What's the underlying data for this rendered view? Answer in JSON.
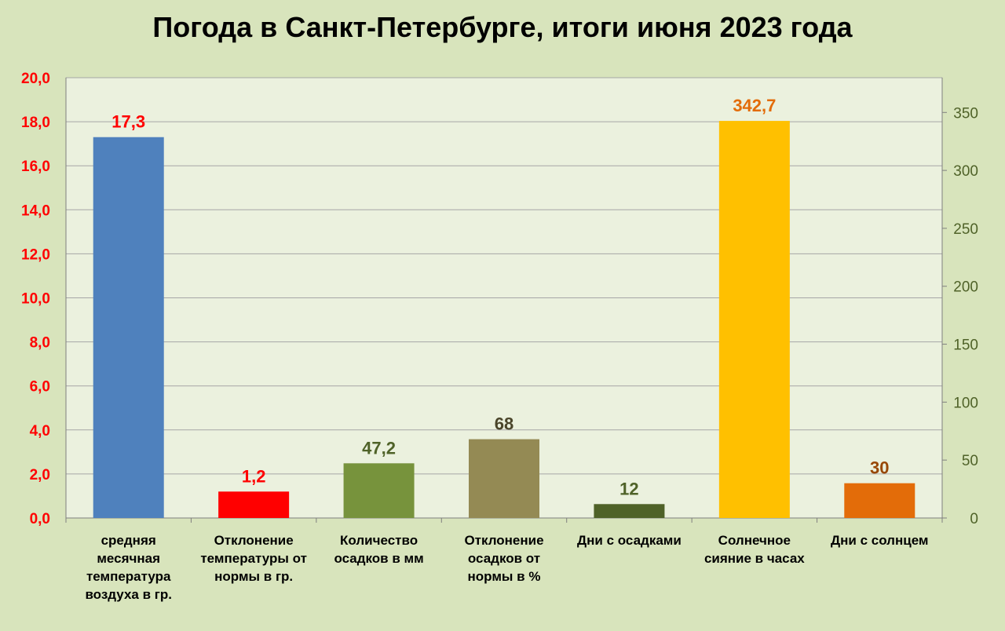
{
  "chart_data": {
    "type": "bar",
    "title": "Погода в Санкт-Петербурге, итоги июня 2023 года",
    "categories": [
      "средняя месячная температура воздуха в гр.",
      "Отклонение температуры от нормы в гр.",
      "Количество осадков в мм",
      "Отклонение осадков от нормы в %",
      "Дни с осадками",
      "Солнечное сияние в часах",
      "Дни с солнцем"
    ],
    "category_lines": [
      [
        "средняя",
        "месячная",
        "температура",
        "воздуха в гр."
      ],
      [
        "Отклонение",
        "температуры от",
        "нормы в гр."
      ],
      [
        "Количество",
        "осадков в мм"
      ],
      [
        "Отклонение",
        "осадков от",
        "нормы в %"
      ],
      [
        "Дни с осадками"
      ],
      [
        "Солнечное",
        "сияние в часах"
      ],
      [
        "Дни с солнцем"
      ]
    ],
    "values": [
      17.3,
      1.2,
      47.2,
      68,
      12,
      342.7,
      30
    ],
    "value_labels": [
      "17,3",
      "1,2",
      "47,2",
      "68",
      "12",
      "342,7",
      "30"
    ],
    "axis": [
      "left",
      "left",
      "right",
      "right",
      "right",
      "right",
      "right"
    ],
    "colors": [
      "#4f81bd",
      "#ff0000",
      "#77933c",
      "#948a54",
      "#4f6228",
      "#ffc000",
      "#e36c09"
    ],
    "label_colors": [
      "#ff0000",
      "#ff0000",
      "#4f6228",
      "#4a452a",
      "#4f6228",
      "#e36c09",
      "#984806"
    ],
    "y_left": {
      "min": 0,
      "max": 20,
      "step": 2,
      "tick_labels": [
        "0,0",
        "2,0",
        "4,0",
        "6,0",
        "8,0",
        "10,0",
        "12,0",
        "14,0",
        "16,0",
        "18,0",
        "20,0"
      ],
      "color": "#ff0000"
    },
    "y_right": {
      "min": 0,
      "max": 380,
      "step": 50,
      "tick_labels": [
        "0",
        "50",
        "100",
        "150",
        "200",
        "250",
        "300",
        "350"
      ],
      "color": "#4f6228"
    },
    "grid": true,
    "legend": "none"
  }
}
